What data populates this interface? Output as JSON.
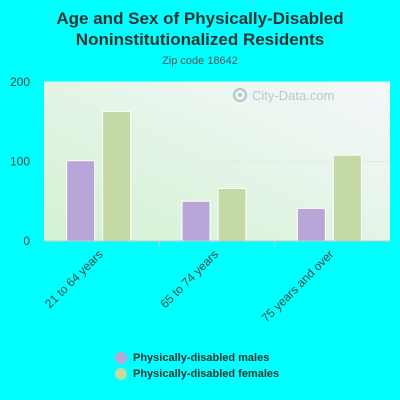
{
  "chart_data": {
    "type": "bar",
    "title_line1": "Age and Sex of Physically-Disabled",
    "title_line2": "Noninstitutionalized Residents",
    "subtitle": "Zip code 18642",
    "categories": [
      "21 to 64 years",
      "65 to 74 years",
      "75 years and over"
    ],
    "series": [
      {
        "name": "Physically-disabled males",
        "values": [
          101,
          50,
          41
        ],
        "color": "#b9a6d9"
      },
      {
        "name": "Physically-disabled females",
        "values": [
          163,
          66,
          108
        ],
        "color": "#c5d9a4"
      }
    ],
    "yticks": [
      0,
      100,
      200
    ],
    "ylim": [
      0,
      200
    ],
    "grid": true,
    "legend_position": "bottom",
    "watermark": "City-Data.com"
  }
}
